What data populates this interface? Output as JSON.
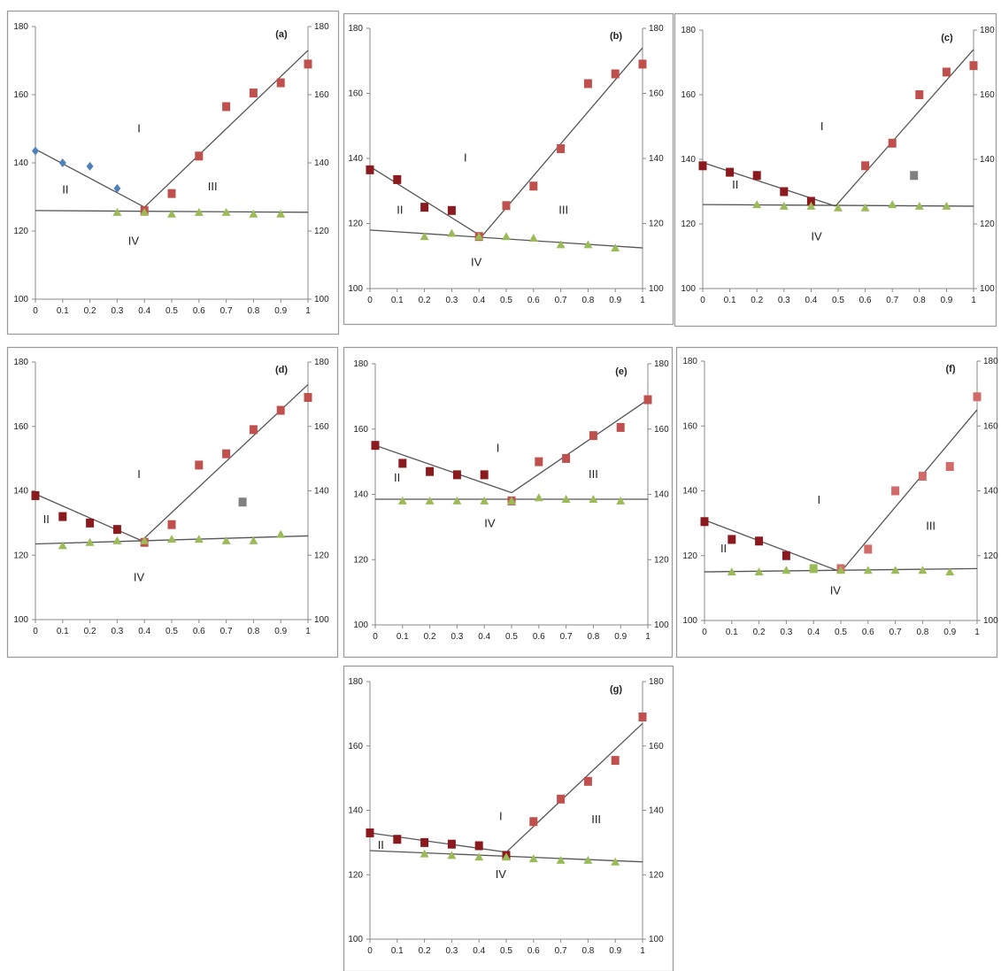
{
  "colors": {
    "blue_diamond": "#4f81bd",
    "red_square": "#b83a3e",
    "dark_red_square": "#8b1a1e",
    "pink_square": "#d36a6a",
    "green_triangle": "#9bbb59",
    "gray_square": "#808080",
    "line": "#555555",
    "axis": "#888888",
    "frame": "#999999",
    "text": "#222222"
  },
  "chart_data": [
    {
      "type": "scatter",
      "panel_label": "(a)",
      "xlim": [
        0,
        1
      ],
      "ylim": [
        100,
        180
      ],
      "x_ticks": [
        "0",
        "0.1",
        "0.2",
        "0.3",
        "0.4",
        "0.5",
        "0.6",
        "0.7",
        "0.8",
        "0.9",
        "1"
      ],
      "y_ticks": [
        "100",
        "120",
        "140",
        "160",
        "180"
      ],
      "y2_ticks": [
        "100",
        "120",
        "140",
        "160",
        "180"
      ],
      "series": [
        {
          "marker": "diamond",
          "color": "#4f81bd",
          "x": [
            0,
            0.1,
            0.2,
            0.3
          ],
          "y": [
            143.5,
            140,
            139,
            132.5
          ]
        },
        {
          "marker": "square",
          "color": "#c0504d",
          "x": [
            0.4,
            0.5,
            0.6,
            0.7,
            0.8,
            0.9,
            1
          ],
          "y": [
            126,
            131,
            142,
            156.5,
            160.5,
            163.5,
            169
          ]
        },
        {
          "marker": "triangle",
          "color": "#9bbb59",
          "x": [
            0.3,
            0.4,
            0.5,
            0.6,
            0.7,
            0.8,
            0.9
          ],
          "y": [
            125.5,
            125.5,
            125,
            125.5,
            125.5,
            125,
            125
          ]
        }
      ],
      "lines": [
        {
          "x": [
            0,
            0.4
          ],
          "y": [
            144,
            127
          ]
        },
        {
          "x": [
            0.4,
            1
          ],
          "y": [
            127,
            173
          ]
        },
        {
          "x": [
            0,
            1
          ],
          "y": [
            126,
            125.5
          ]
        }
      ],
      "region_labels": [
        {
          "text": "I",
          "x": 0.38,
          "y": 149
        },
        {
          "text": "II",
          "x": 0.11,
          "y": 131
        },
        {
          "text": "III",
          "x": 0.65,
          "y": 132
        },
        {
          "text": "IV",
          "x": 0.36,
          "y": 116
        }
      ]
    },
    {
      "type": "scatter",
      "panel_label": "(b)",
      "xlim": [
        0,
        1
      ],
      "ylim": [
        100,
        180
      ],
      "x_ticks": [
        "0",
        "0.1",
        "0.2",
        "0.3",
        "0.4",
        "0.5",
        "0.6",
        "0.7",
        "0.8",
        "0.9",
        "1"
      ],
      "y_ticks": [
        "100",
        "120",
        "140",
        "160",
        "180"
      ],
      "y2_ticks": [
        "100",
        "120",
        "140",
        "160",
        "180"
      ],
      "series": [
        {
          "marker": "square",
          "color": "#8b1a1e",
          "x": [
            0,
            0.1,
            0.2,
            0.3
          ],
          "y": [
            136.5,
            133.5,
            125,
            124
          ]
        },
        {
          "marker": "square",
          "color": "#c0504d",
          "x": [
            0.4,
            0.5,
            0.6,
            0.7,
            0.8,
            0.9,
            1
          ],
          "y": [
            116,
            125.5,
            131.5,
            143,
            163,
            166,
            169
          ]
        },
        {
          "marker": "triangle",
          "color": "#9bbb59",
          "x": [
            0.2,
            0.3,
            0.4,
            0.5,
            0.6,
            0.7,
            0.8,
            0.9
          ],
          "y": [
            116,
            117,
            116,
            116,
            115.5,
            113.5,
            113.5,
            112.5
          ]
        }
      ],
      "lines": [
        {
          "x": [
            0,
            0.41
          ],
          "y": [
            137.5,
            116
          ]
        },
        {
          "x": [
            0.41,
            1
          ],
          "y": [
            116,
            174
          ]
        },
        {
          "x": [
            0,
            1
          ],
          "y": [
            118,
            112.5
          ]
        }
      ],
      "region_labels": [
        {
          "text": "I",
          "x": 0.35,
          "y": 139
        },
        {
          "text": "II",
          "x": 0.11,
          "y": 123
        },
        {
          "text": "III",
          "x": 0.71,
          "y": 123
        },
        {
          "text": "IV",
          "x": 0.39,
          "y": 107
        }
      ]
    },
    {
      "type": "scatter",
      "panel_label": "(c)",
      "xlim": [
        0,
        1
      ],
      "ylim": [
        100,
        180
      ],
      "x_ticks": [
        "0",
        "0.1",
        "0.2",
        "0.3",
        "0.4",
        "0.5",
        "0.6",
        "0.7",
        "0.8",
        "0.9",
        "1"
      ],
      "y_ticks": [
        "100",
        "120",
        "140",
        "160",
        "180"
      ],
      "y2_ticks": [
        "100",
        "120",
        "140",
        "160",
        "180"
      ],
      "series": [
        {
          "marker": "square",
          "color": "#8b1a1e",
          "x": [
            0,
            0.1,
            0.2,
            0.3,
            0.4
          ],
          "y": [
            138,
            136,
            135,
            130,
            127
          ]
        },
        {
          "marker": "square",
          "color": "#c0504d",
          "x": [
            0.6,
            0.7,
            0.8,
            0.9,
            1
          ],
          "y": [
            138,
            145,
            160,
            167,
            169
          ]
        },
        {
          "marker": "triangle",
          "color": "#9bbb59",
          "x": [
            0.2,
            0.3,
            0.4,
            0.5,
            0.6,
            0.7,
            0.8,
            0.9
          ],
          "y": [
            126,
            125.5,
            125.5,
            125,
            125,
            126,
            125.5,
            125.5
          ]
        },
        {
          "marker": "square",
          "color": "#808080",
          "x": [
            0.78
          ],
          "y": [
            135
          ]
        }
      ],
      "lines": [
        {
          "x": [
            0,
            0.49
          ],
          "y": [
            139,
            125.5
          ]
        },
        {
          "x": [
            0.49,
            1
          ],
          "y": [
            125.5,
            174
          ]
        },
        {
          "x": [
            0,
            1
          ],
          "y": [
            126,
            125.5
          ]
        }
      ],
      "region_labels": [
        {
          "text": "I",
          "x": 0.44,
          "y": 149
        },
        {
          "text": "II",
          "x": 0.12,
          "y": 131
        },
        {
          "text": "IV",
          "x": 0.42,
          "y": 115
        }
      ]
    },
    {
      "type": "scatter",
      "panel_label": "(d)",
      "xlim": [
        0,
        1
      ],
      "ylim": [
        100,
        180
      ],
      "x_ticks": [
        "0",
        "0.1",
        "0.2",
        "0.3",
        "0.4",
        "0.5",
        "0.6",
        "0.7",
        "0.8",
        "0.9",
        "1"
      ],
      "y_ticks": [
        "100",
        "120",
        "140",
        "160",
        "180"
      ],
      "y2_ticks": [
        "100",
        "120",
        "140",
        "160",
        "180"
      ],
      "series": [
        {
          "marker": "square",
          "color": "#8b1a1e",
          "x": [
            0,
            0.1,
            0.2,
            0.3
          ],
          "y": [
            138.5,
            132,
            130,
            128
          ]
        },
        {
          "marker": "square",
          "color": "#c0504d",
          "x": [
            0.4,
            0.5,
            0.6,
            0.7,
            0.8,
            0.9,
            1
          ],
          "y": [
            124,
            129.5,
            148,
            151.5,
            159,
            165,
            169
          ]
        },
        {
          "marker": "triangle",
          "color": "#9bbb59",
          "x": [
            0.1,
            0.2,
            0.3,
            0.4,
            0.5,
            0.6,
            0.7,
            0.8,
            0.9
          ],
          "y": [
            123,
            124,
            124.5,
            124.5,
            125,
            125,
            124.5,
            124.5,
            126.5
          ]
        },
        {
          "marker": "square",
          "color": "#808080",
          "x": [
            0.76
          ],
          "y": [
            136.5
          ]
        }
      ],
      "lines": [
        {
          "x": [
            0,
            0.39
          ],
          "y": [
            139,
            124.5
          ]
        },
        {
          "x": [
            0.39,
            1
          ],
          "y": [
            124.5,
            173
          ]
        },
        {
          "x": [
            0,
            1
          ],
          "y": [
            123.5,
            126
          ]
        }
      ],
      "region_labels": [
        {
          "text": "I",
          "x": 0.38,
          "y": 144
        },
        {
          "text": "II",
          "x": 0.04,
          "y": 130
        },
        {
          "text": "IV",
          "x": 0.38,
          "y": 112
        }
      ]
    },
    {
      "type": "scatter",
      "panel_label": "(e)",
      "xlim": [
        0,
        1
      ],
      "ylim": [
        100,
        180
      ],
      "x_ticks": [
        "0",
        "0.1",
        "0.2",
        "0.3",
        "0.4",
        "0.5",
        "0.6",
        "0.7",
        "0.8",
        "0.9",
        "1"
      ],
      "y_ticks": [
        "100",
        "120",
        "140",
        "160",
        "180"
      ],
      "y2_ticks": [
        "100",
        "120",
        "140",
        "160",
        "180"
      ],
      "series": [
        {
          "marker": "square",
          "color": "#8b1a1e",
          "x": [
            0,
            0.1,
            0.2,
            0.3,
            0.4
          ],
          "y": [
            155,
            149.5,
            147,
            146,
            146
          ]
        },
        {
          "marker": "square",
          "color": "#c0504d",
          "x": [
            0.5,
            0.6,
            0.7,
            0.8,
            0.9,
            1
          ],
          "y": [
            138,
            150,
            151,
            158,
            160.5,
            169
          ]
        },
        {
          "marker": "triangle",
          "color": "#9bbb59",
          "x": [
            0.1,
            0.2,
            0.3,
            0.4,
            0.5,
            0.6,
            0.7,
            0.8,
            0.9
          ],
          "y": [
            138,
            138,
            138,
            138,
            138,
            139,
            138.5,
            138.5,
            138
          ]
        }
      ],
      "lines": [
        {
          "x": [
            0,
            0.5
          ],
          "y": [
            155,
            140.5
          ]
        },
        {
          "x": [
            0.5,
            1
          ],
          "y": [
            140.5,
            169
          ]
        },
        {
          "x": [
            0,
            1
          ],
          "y": [
            138.5,
            138.5
          ]
        }
      ],
      "region_labels": [
        {
          "text": "I",
          "x": 0.45,
          "y": 153
        },
        {
          "text": "II",
          "x": 0.08,
          "y": 144
        },
        {
          "text": "III",
          "x": 0.8,
          "y": 145
        },
        {
          "text": "IV",
          "x": 0.42,
          "y": 130
        }
      ]
    },
    {
      "type": "scatter",
      "panel_label": "(f)",
      "xlim": [
        0,
        1
      ],
      "ylim": [
        100,
        180
      ],
      "x_ticks": [
        "0",
        "0.1",
        "0.2",
        "0.3",
        "0.4",
        "0.5",
        "0.6",
        "0.7",
        "0.8",
        "0.9",
        "1"
      ],
      "y_ticks": [
        "100",
        "120",
        "140",
        "160",
        "180"
      ],
      "y2_ticks": [
        "100",
        "120",
        "140",
        "160",
        "180"
      ],
      "series": [
        {
          "marker": "square",
          "color": "#8b1a1e",
          "x": [
            0,
            0.1,
            0.2,
            0.3
          ],
          "y": [
            130.5,
            125,
            124.5,
            120
          ]
        },
        {
          "marker": "square",
          "color": "#d36a6a",
          "x": [
            0.5,
            0.6,
            0.7,
            0.8,
            0.9,
            1
          ],
          "y": [
            116,
            122,
            140,
            144.5,
            147.5,
            169
          ]
        },
        {
          "marker": "triangle",
          "color": "#9bbb59",
          "x": [
            0.1,
            0.2,
            0.3,
            0.5,
            0.6,
            0.7,
            0.8,
            0.9
          ],
          "y": [
            115,
            115,
            115.5,
            115.5,
            115.5,
            115.5,
            115.5,
            115
          ]
        },
        {
          "marker": "square",
          "color": "#9bbb59",
          "x": [
            0.4
          ],
          "y": [
            116
          ]
        }
      ],
      "lines": [
        {
          "x": [
            0,
            0.5
          ],
          "y": [
            131,
            115
          ]
        },
        {
          "x": [
            0.5,
            1
          ],
          "y": [
            115,
            165
          ]
        },
        {
          "x": [
            0,
            1
          ],
          "y": [
            115,
            116
          ]
        }
      ],
      "region_labels": [
        {
          "text": "I",
          "x": 0.42,
          "y": 136
        },
        {
          "text": "II",
          "x": 0.07,
          "y": 121
        },
        {
          "text": "III",
          "x": 0.83,
          "y": 128
        },
        {
          "text": "IV",
          "x": 0.48,
          "y": 108
        }
      ]
    },
    {
      "type": "scatter",
      "panel_label": "(g)",
      "xlim": [
        0,
        1
      ],
      "ylim": [
        100,
        180
      ],
      "x_ticks": [
        "0",
        "0.1",
        "0.2",
        "0.3",
        "0.4",
        "0.5",
        "0.6",
        "0.7",
        "0.8",
        "0.9",
        "1"
      ],
      "y_ticks": [
        "100",
        "120",
        "140",
        "160",
        "180"
      ],
      "y2_ticks": [
        "100",
        "120",
        "140",
        "160",
        "180"
      ],
      "series": [
        {
          "marker": "square",
          "color": "#8b1a1e",
          "x": [
            0,
            0.1,
            0.2,
            0.3,
            0.4,
            0.5
          ],
          "y": [
            133,
            131,
            130,
            129.5,
            129,
            126
          ]
        },
        {
          "marker": "square",
          "color": "#c0504d",
          "x": [
            0.6,
            0.7,
            0.8,
            0.9,
            1
          ],
          "y": [
            136.5,
            143.5,
            149,
            155.5,
            169
          ]
        },
        {
          "marker": "triangle",
          "color": "#9bbb59",
          "x": [
            0.2,
            0.3,
            0.4,
            0.5,
            0.6,
            0.7,
            0.8,
            0.9
          ],
          "y": [
            126.5,
            126,
            125.5,
            125.5,
            125,
            124.5,
            124.5,
            124
          ]
        }
      ],
      "lines": [
        {
          "x": [
            0,
            0.5
          ],
          "y": [
            133,
            127
          ]
        },
        {
          "x": [
            0.5,
            1
          ],
          "y": [
            127,
            167
          ]
        },
        {
          "x": [
            0,
            1
          ],
          "y": [
            127.5,
            124
          ]
        }
      ],
      "region_labels": [
        {
          "text": "I",
          "x": 0.48,
          "y": 137
        },
        {
          "text": "II",
          "x": 0.04,
          "y": 128
        },
        {
          "text": "III",
          "x": 0.83,
          "y": 136
        },
        {
          "text": "IV",
          "x": 0.48,
          "y": 119
        }
      ]
    }
  ]
}
